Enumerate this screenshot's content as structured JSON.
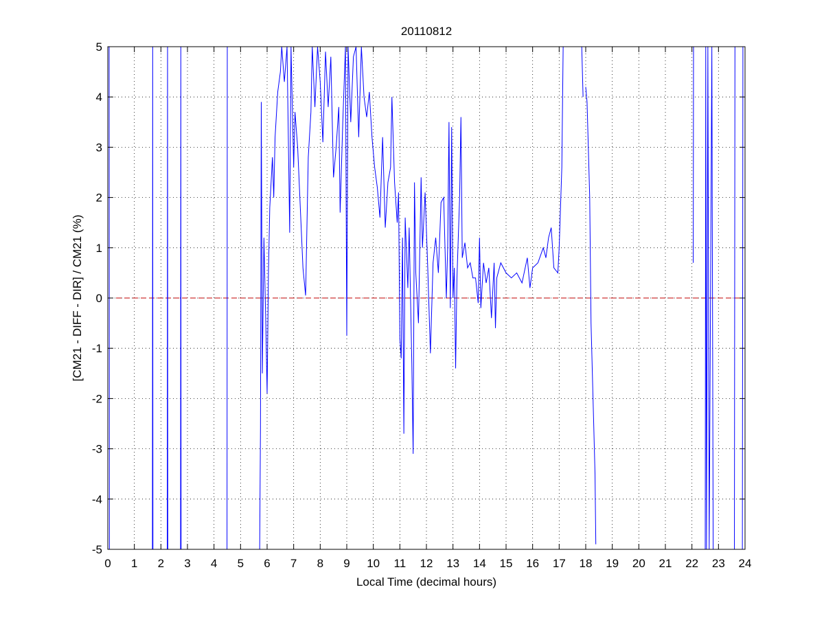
{
  "chart_data": {
    "type": "line",
    "title": "20110812",
    "x_label": "Local Time (decimal hours)",
    "y_label": "[CM21 - DIFF - DIR] / CM21 (%)",
    "color": "#0000ff",
    "grid": true,
    "reference_line": {
      "value": 0,
      "color": "#c00000"
    },
    "xlim": [
      0,
      24
    ],
    "xticks": [
      0,
      1,
      2,
      3,
      4,
      5,
      6,
      7,
      8,
      9,
      10,
      11,
      12,
      13,
      14,
      15,
      16,
      17,
      18,
      19,
      20,
      21,
      22,
      23,
      24
    ],
    "ylim": [
      -5,
      5
    ],
    "yticks": [
      -5,
      -4,
      -3,
      -2,
      -1,
      0,
      1,
      2,
      3,
      4,
      5
    ],
    "x": [
      0.05,
      0.06,
      null,
      1.68,
      1.69,
      1.7,
      null,
      2.24,
      2.25,
      2.26,
      null,
      2.74,
      2.75,
      2.76,
      null,
      4.49,
      4.5,
      null,
      5.72,
      5.75,
      5.78,
      5.82,
      5.88,
      5.95,
      6.0,
      6.05,
      6.1,
      6.2,
      6.25,
      6.3,
      6.4,
      6.5,
      6.55,
      6.65,
      6.75,
      6.85,
      6.9,
      7.0,
      7.05,
      7.15,
      7.25,
      7.35,
      7.45,
      7.55,
      7.65,
      7.7,
      7.8,
      7.9,
      8.0,
      8.1,
      8.2,
      8.3,
      8.4,
      8.5,
      8.6,
      8.7,
      8.75,
      8.85,
      8.95,
      9.0,
      9.05,
      9.15,
      9.25,
      9.35,
      9.45,
      9.55,
      9.65,
      9.75,
      9.85,
      9.95,
      10.05,
      10.15,
      10.25,
      10.35,
      10.45,
      10.55,
      10.65,
      10.7,
      10.8,
      10.9,
      10.95,
      11.0,
      11.05,
      11.1,
      11.15,
      11.2,
      11.3,
      11.35,
      11.45,
      11.5,
      11.55,
      11.6,
      11.7,
      11.8,
      11.85,
      11.95,
      12.05,
      12.15,
      12.25,
      12.35,
      12.45,
      12.55,
      12.65,
      12.75,
      12.8,
      12.85,
      12.9,
      12.95,
      13.0,
      13.05,
      13.1,
      13.15,
      13.25,
      13.3,
      13.35,
      13.45,
      13.55,
      13.65,
      13.75,
      13.85,
      13.95,
      14.0,
      14.05,
      14.15,
      14.25,
      14.35,
      14.45,
      14.55,
      14.6,
      14.65,
      14.8,
      15.0,
      15.2,
      15.4,
      15.6,
      15.8,
      15.9,
      16.0,
      16.2,
      16.4,
      16.5,
      16.6,
      16.7,
      16.8,
      16.95,
      17.0,
      17.1,
      17.15,
      null,
      17.85,
      17.9,
      null,
      18.0,
      18.05,
      18.15,
      18.2,
      18.3,
      18.35,
      18.38,
      null,
      22.05,
      22.06,
      null,
      22.5,
      22.52,
      22.55,
      22.6,
      22.65,
      22.75,
      22.8,
      null,
      23.6,
      23.62,
      null,
      23.9,
      23.92
    ],
    "values": [
      5,
      -5,
      null,
      -5,
      5,
      -5,
      null,
      -5,
      5,
      -5,
      null,
      -5,
      5,
      -5,
      null,
      -5,
      5,
      null,
      -5,
      -2.6,
      3.9,
      -1.5,
      1.2,
      -0.5,
      -1.9,
      0.5,
      1.8,
      2.8,
      2.0,
      3.2,
      4.1,
      4.5,
      5,
      4.3,
      5,
      1.3,
      5,
      2.6,
      3.7,
      3.0,
      1.8,
      0.6,
      0.05,
      2.8,
      3.7,
      5,
      3.8,
      5,
      4.3,
      3.1,
      4.9,
      3.8,
      4.8,
      2.4,
      3.0,
      3.8,
      1.7,
      3.5,
      5,
      -0.75,
      5,
      3.5,
      4.8,
      5,
      3.2,
      5,
      4.0,
      3.6,
      4.1,
      3.2,
      2.6,
      2.2,
      1.6,
      3.2,
      1.4,
      2.3,
      2.6,
      4.0,
      2.3,
      1.5,
      2.1,
      -0.8,
      -1.2,
      1.2,
      -2.7,
      1.6,
      0.2,
      1.4,
      -1.3,
      -3.1,
      2.3,
      0.5,
      -0.5,
      2.4,
      1.0,
      2.1,
      0.6,
      -1.1,
      0.7,
      1.2,
      0.5,
      1.9,
      2.0,
      0.0,
      1.0,
      3.5,
      -0.2,
      3.4,
      0.0,
      0.6,
      -1.4,
      0.4,
      2.0,
      3.6,
      0.8,
      1.1,
      0.6,
      0.7,
      0.4,
      0.4,
      -0.1,
      1.2,
      -0.2,
      0.7,
      0.3,
      0.6,
      -0.4,
      0.7,
      -0.6,
      0.4,
      0.7,
      0.5,
      0.4,
      0.5,
      0.3,
      0.8,
      0.2,
      0.6,
      0.7,
      1.0,
      0.8,
      1.2,
      1.4,
      0.6,
      0.5,
      1.0,
      2.6,
      5,
      null,
      5,
      4.0,
      null,
      4.2,
      3.9,
      2.0,
      -0.5,
      -2.5,
      -3.5,
      -4.9,
      null,
      0.7,
      5,
      null,
      -5,
      5,
      -5,
      5,
      -5,
      5,
      -5,
      null,
      -5,
      5,
      null,
      -5,
      5
    ]
  }
}
